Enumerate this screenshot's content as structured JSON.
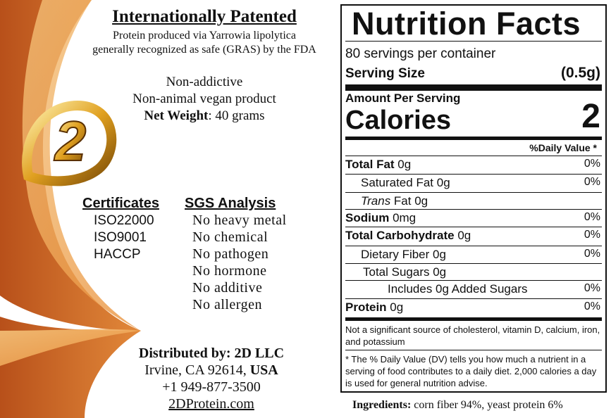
{
  "patent": {
    "title": "Internationally Patented",
    "lines": [
      "Protein produced via Yarrowia lipolytica",
      "generally recognized as safe (GRAS) by the FDA"
    ]
  },
  "claims": [
    "Non-addictive",
    "Non-animal vegan product"
  ],
  "net_weight": {
    "label": "Net Weight",
    "value": ": 40 grams"
  },
  "logo_text": "2",
  "certificates": {
    "title": "Certificates",
    "items": [
      "ISO22000",
      "ISO9001",
      "HACCP"
    ]
  },
  "sgs": {
    "title": "SGS Analysis",
    "items": [
      "No heavy metal",
      "No chemical",
      "No pathogen",
      "No hormone",
      "No additive",
      "No allergen"
    ]
  },
  "distributor": {
    "label": "Distributed by: 2D LLC",
    "address": "Irvine, CA 92614, ",
    "country": "USA",
    "phone": "+1 949-877-3500",
    "website": "2DProtein.com"
  },
  "nutrition": {
    "title": "Nutrition Facts",
    "servings": "80 servings per container",
    "serving_size_label": "Serving Size",
    "serving_size": "(0.5g)",
    "amount_per_serving": "Amount Per Serving",
    "calories_label": "Calories",
    "calories": "2",
    "dv_header": "%Daily Value *",
    "rows": [
      {
        "name": "Total Fat",
        "amount": " 0g",
        "dv": "0%"
      },
      {
        "name": "Saturated Fat",
        "amount": " 0g",
        "dv": "0%"
      },
      {
        "name": "Trans",
        "amount": " Fat 0g"
      },
      {
        "name": "Sodium",
        "amount": " 0mg",
        "dv": "0%"
      },
      {
        "name": "Total Carbohydrate",
        "amount": " 0g",
        "dv": "0%"
      },
      {
        "name": "Dietary Fiber",
        "amount": " 0g",
        "dv": "0%"
      },
      {
        "name": "Total Sugars",
        "amount": " 0g"
      },
      {
        "name": "Includes 0g Added Sugars",
        "dv": "0%"
      },
      {
        "name": "Protein",
        "amount": " 0g",
        "dv": "0%"
      }
    ],
    "note": "Not a significant source of cholesterol, vitamin D, calcium, iron, and potassium",
    "footnote": "* The % Daily Value (DV) tells you how much a nutrient in a serving of food contributes to a daily diet. 2,000 calories a day is used for general nutrition advise."
  },
  "ingredients": {
    "label": "Ingredients:",
    "text": " corn fiber 94%, yeast protein 6%"
  }
}
